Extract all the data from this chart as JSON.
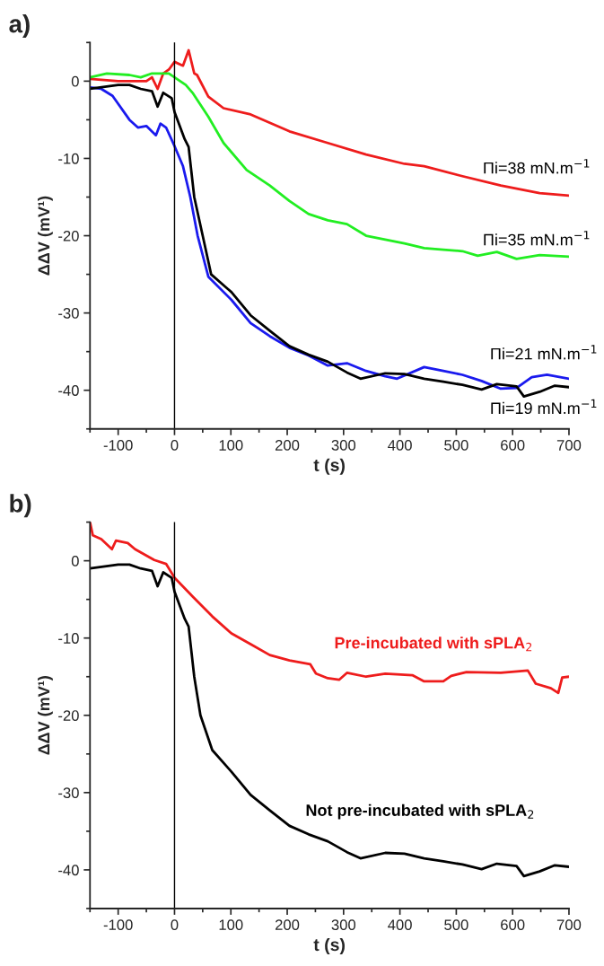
{
  "chart_data": [
    {
      "type": "line",
      "title": "a)",
      "xlabel": "t (s)",
      "ylabel": "ΔΔV (mV¹)",
      "xlim": [
        -150,
        700
      ],
      "ylim": [
        -45,
        5
      ],
      "xticks": [
        {
          "value": -150,
          "label": null
        },
        -100,
        {
          "value": -50,
          "label": null
        },
        0,
        {
          "value": 50,
          "label": null
        },
        100,
        {
          "value": 150,
          "label": null
        },
        200,
        {
          "value": 250,
          "label": null
        },
        300,
        {
          "value": 350,
          "label": null
        },
        400,
        {
          "value": 450,
          "label": null
        },
        500,
        {
          "value": 550,
          "label": null
        },
        600,
        {
          "value": 650,
          "label": null
        },
        700
      ],
      "yticks": [
        {
          "value": 5,
          "label": null
        },
        0,
        {
          "value": -5,
          "label": null
        },
        -10,
        {
          "value": -15,
          "label": null
        },
        -20,
        {
          "value": -25,
          "label": null
        },
        -30,
        {
          "value": -35,
          "label": null
        },
        -40,
        {
          "value": -45,
          "label": null
        }
      ],
      "ref_lines": [
        {
          "axis": "x",
          "value": 0,
          "color": "#000000"
        }
      ],
      "series": [
        {
          "name": "Πi=38 mN.m$^{−1}$",
          "color": "#ee1c1c",
          "x": [
            -150,
            -100,
            -50,
            -40,
            -30,
            -20,
            -10,
            0,
            15,
            25,
            35,
            40,
            60,
            87,
            135,
            204,
            272,
            340,
            408,
            443,
            511,
            579,
            648,
            700
          ],
          "values": [
            0.3,
            0,
            0,
            0.5,
            -1,
            1,
            1.5,
            2.5,
            2,
            4,
            1,
            0.8,
            -2,
            -3.5,
            -4.3,
            -6.5,
            -8,
            -9.5,
            -10.7,
            -11,
            -12.3,
            -13.5,
            -14.5,
            -14.8
          ]
        },
        {
          "name": "Πi=35 mN.m$^{−1}$",
          "color": "#22ee22",
          "x": [
            -150,
            -120,
            -80,
            -60,
            -40,
            -10,
            0,
            20,
            33,
            60,
            87,
            128,
            169,
            204,
            238,
            272,
            306,
            340,
            374,
            408,
            443,
            477,
            511,
            538,
            572,
            607,
            648,
            700
          ],
          "values": [
            0.5,
            1,
            0.8,
            0.5,
            1,
            1,
            0.5,
            -0.5,
            -1.6,
            -4.6,
            -8,
            -11.5,
            -13.5,
            -15.5,
            -17.2,
            -18,
            -18.5,
            -20,
            -20.5,
            -21,
            -21.6,
            -21.8,
            -22,
            -22.6,
            -22.1,
            -23,
            -22.5,
            -22.7
          ]
        },
        {
          "name": "Πi=21 mN.m$^{−1}$",
          "color": "#1a1aee",
          "x": [
            -150,
            -130,
            -110,
            -80,
            -65,
            -50,
            -33,
            -25,
            -15,
            0,
            15,
            28,
            41,
            60,
            101,
            135,
            169,
            204,
            238,
            272,
            306,
            340,
            374,
            395,
            443,
            477,
            511,
            545,
            579,
            607,
            634,
            661,
            700
          ],
          "values": [
            -0.8,
            -1,
            -1.9,
            -5,
            -6,
            -5.8,
            -7,
            -5.5,
            -6,
            -8.4,
            -11,
            -15,
            -20,
            -25.3,
            -28.3,
            -31.3,
            -33,
            -34.5,
            -35.5,
            -36.8,
            -36.5,
            -37.5,
            -38.2,
            -38.5,
            -37,
            -37.5,
            -38,
            -38.8,
            -39.8,
            -39.7,
            -38.3,
            -38,
            -38.5
          ]
        },
        {
          "name": "Πi=19 mN.m$^{−1}$",
          "color": "#000000",
          "x": [
            -150,
            -100,
            -80,
            -60,
            -40,
            -30,
            -20,
            -5,
            0,
            18,
            25,
            35,
            50,
            65,
            101,
            135,
            169,
            204,
            238,
            272,
            306,
            330,
            374,
            408,
            443,
            477,
            511,
            545,
            572,
            607,
            620,
            648,
            675,
            700
          ],
          "values": [
            -1,
            -0.5,
            -0.5,
            -1,
            -1.3,
            -3.3,
            -1.5,
            -2.2,
            -4,
            -7.5,
            -8.5,
            -15,
            -20,
            -25,
            -27.3,
            -30.3,
            -32.3,
            -34.3,
            -35.4,
            -36.3,
            -37.7,
            -38.5,
            -37.8,
            -37.9,
            -38.5,
            -38.9,
            -39.3,
            -39.9,
            -39.2,
            -39.5,
            -40.8,
            -40.2,
            -39.4,
            -39.6
          ]
        }
      ]
    },
    {
      "type": "line",
      "title": "b)",
      "xlabel": "t (s)",
      "ylabel": "ΔΔV (mV¹)",
      "xlim": [
        -150,
        700
      ],
      "ylim": [
        -45,
        5
      ],
      "xticks": [
        {
          "value": -150,
          "label": null
        },
        -100,
        {
          "value": -50,
          "label": null
        },
        0,
        {
          "value": 50,
          "label": null
        },
        100,
        {
          "value": 150,
          "label": null
        },
        200,
        {
          "value": 250,
          "label": null
        },
        300,
        {
          "value": 350,
          "label": null
        },
        400,
        {
          "value": 450,
          "label": null
        },
        500,
        {
          "value": 550,
          "label": null
        },
        600,
        {
          "value": 650,
          "label": null
        },
        700
      ],
      "yticks": [
        {
          "value": 5,
          "label": null
        },
        0,
        {
          "value": -5,
          "label": null
        },
        -10,
        {
          "value": -15,
          "label": null
        },
        -20,
        {
          "value": -25,
          "label": null
        },
        -30,
        {
          "value": -35,
          "label": null
        },
        -40,
        {
          "value": -45,
          "label": null
        }
      ],
      "ref_lines": [
        {
          "axis": "x",
          "value": 0,
          "color": "#000000"
        }
      ],
      "series": [
        {
          "name": "Pre-incubated with sPLA$_{2}$",
          "color": "#ee1c1c",
          "x": [
            -150,
            -145,
            -130,
            -111,
            -104,
            -83,
            -70,
            -36,
            -15,
            0,
            33,
            67,
            101,
            135,
            169,
            204,
            241,
            251,
            272,
            292,
            306,
            340,
            374,
            422,
            443,
            477,
            491,
            518,
            579,
            627,
            641,
            668,
            681,
            688,
            700
          ],
          "values": [
            5,
            3.3,
            2.8,
            1.5,
            2.6,
            2.3,
            1.5,
            0.1,
            -0.4,
            -2.2,
            -4.7,
            -7.2,
            -9.4,
            -10.8,
            -12.2,
            -12.9,
            -13.4,
            -14.6,
            -15.2,
            -15.4,
            -14.5,
            -15,
            -14.6,
            -14.8,
            -15.6,
            -15.6,
            -14.9,
            -14.4,
            -14.5,
            -14.2,
            -15.9,
            -16.5,
            -17.1,
            -15.1,
            -15
          ]
        },
        {
          "name": "Not pre-incubated with sPLA$_{2}$",
          "color": "#000000",
          "x": [
            -150,
            -100,
            -80,
            -60,
            -40,
            -30,
            -20,
            -5,
            0,
            18,
            25,
            35,
            46,
            67,
            101,
            135,
            169,
            204,
            238,
            272,
            306,
            330,
            374,
            408,
            443,
            477,
            511,
            545,
            572,
            607,
            620,
            648,
            675,
            700
          ],
          "values": [
            -1,
            -0.5,
            -0.5,
            -1,
            -1.3,
            -3.3,
            -1.5,
            -2.2,
            -4,
            -7.5,
            -8.5,
            -15,
            -20,
            -24.5,
            -27.3,
            -30.3,
            -32.3,
            -34.3,
            -35.4,
            -36.3,
            -37.7,
            -38.5,
            -37.8,
            -37.9,
            -38.5,
            -38.9,
            -39.3,
            -39.9,
            -39.2,
            -39.5,
            -40.8,
            -40.2,
            -39.4,
            -39.6
          ]
        }
      ]
    }
  ]
}
